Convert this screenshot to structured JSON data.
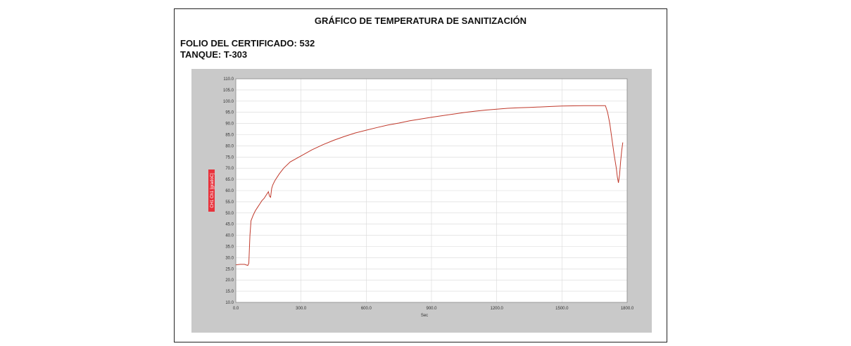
{
  "report": {
    "title": "GRÁFICO DE TEMPERATURA DE SANITIZACIÓN",
    "folio_label": "FOLIO DEL CERTIFICADO:",
    "folio_value": "532",
    "tanque_label": "TANQUE:",
    "tanque_value": "T-303"
  },
  "colors": {
    "series": "#c0392b",
    "plot_bg": "#ffffff",
    "panel_bg": "#c9c9c9",
    "grid": "#d8d8d8",
    "ylabel_bg": "#e8323c"
  },
  "chart_data": {
    "type": "line",
    "title": "",
    "xlabel": "Sec",
    "ylabel": "CH1  Ch1 [gradoC]",
    "xlim": [
      0,
      1800
    ],
    "ylim": [
      10,
      110
    ],
    "grid": true,
    "x_ticks": [
      "0.0",
      "300.0",
      "600.0",
      "900.0",
      "1200.0",
      "1500.0",
      "1800.0"
    ],
    "y_ticks": [
      "10.0",
      "15.0",
      "20.0",
      "25.0",
      "30.0",
      "35.0",
      "40.0",
      "45.0",
      "50.0",
      "55.0",
      "60.0",
      "65.0",
      "70.0",
      "75.0",
      "80.0",
      "85.0",
      "90.0",
      "95.0",
      "100.0",
      "105.0",
      "110.0"
    ],
    "series": [
      {
        "name": "",
        "x": [
          0,
          20,
          40,
          55,
          60,
          65,
          70,
          80,
          90,
          100,
          110,
          120,
          130,
          140,
          150,
          155,
          160,
          165,
          170,
          180,
          200,
          220,
          250,
          300,
          350,
          400,
          450,
          500,
          550,
          600,
          650,
          700,
          750,
          800,
          850,
          900,
          950,
          1000,
          1050,
          1100,
          1150,
          1200,
          1250,
          1300,
          1350,
          1400,
          1450,
          1500,
          1550,
          1600,
          1650,
          1700,
          1710,
          1720,
          1730,
          1740,
          1750,
          1755,
          1760,
          1765,
          1770,
          1775,
          1780
        ],
        "y": [
          26.8,
          27.0,
          27.0,
          26.5,
          27.5,
          40.0,
          46.5,
          49.0,
          51.0,
          52.5,
          54.0,
          55.5,
          56.5,
          58.0,
          59.5,
          57.5,
          57.0,
          61.0,
          62.5,
          64.5,
          67.5,
          70.0,
          72.8,
          75.5,
          78.2,
          80.5,
          82.5,
          84.2,
          85.8,
          87.0,
          88.2,
          89.3,
          90.2,
          91.2,
          92.0,
          92.8,
          93.5,
          94.2,
          94.9,
          95.5,
          96.0,
          96.4,
          96.8,
          97.0,
          97.2,
          97.4,
          97.6,
          97.8,
          97.9,
          98.0,
          98.0,
          98.0,
          95.0,
          90.0,
          83.0,
          76.0,
          70.0,
          66.0,
          63.5,
          67.0,
          73.0,
          78.0,
          81.5
        ]
      }
    ]
  }
}
